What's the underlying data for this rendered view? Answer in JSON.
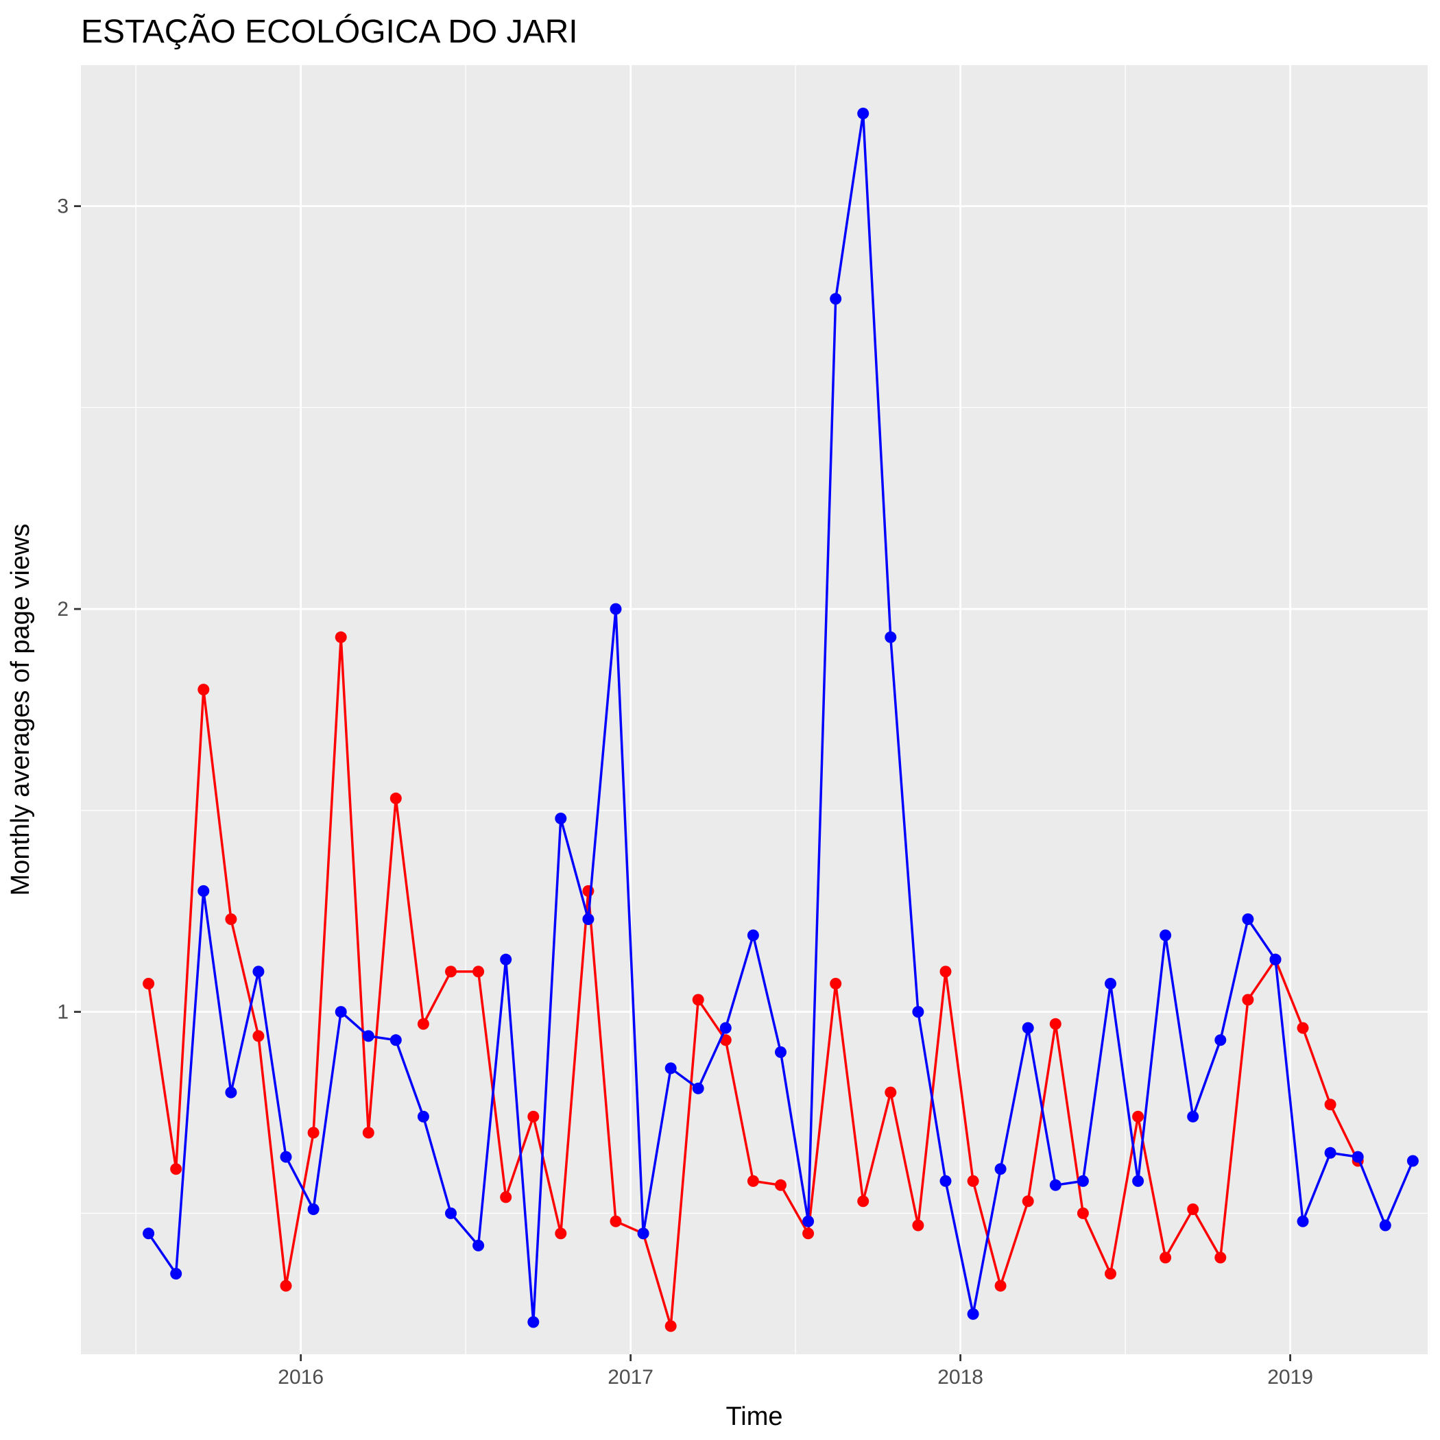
{
  "chart_data": {
    "type": "line",
    "title": "ESTAÇÃO ECOLÓGICA DO JARI",
    "xlabel": "Time",
    "ylabel": "Monthly averages of page views",
    "x_ticks": [
      "2016",
      "2017",
      "2018",
      "2019"
    ],
    "y_ticks": [
      "1",
      "2",
      "3"
    ],
    "y_tick_values": [
      1,
      2,
      3
    ],
    "xlim": [
      "2015-05-01",
      "2019-06-01"
    ],
    "ylim": [
      0.15,
      3.35
    ],
    "grid": true,
    "legend": "none",
    "x": [
      "2015-07",
      "2015-08",
      "2015-09",
      "2015-10",
      "2015-11",
      "2015-12",
      "2016-01",
      "2016-02",
      "2016-03",
      "2016-04",
      "2016-05",
      "2016-06",
      "2016-07",
      "2016-08",
      "2016-09",
      "2016-10",
      "2016-11",
      "2016-12",
      "2017-01",
      "2017-02",
      "2017-03",
      "2017-04",
      "2017-05",
      "2017-06",
      "2017-07",
      "2017-08",
      "2017-09",
      "2017-10",
      "2017-11",
      "2017-12",
      "2018-01",
      "2018-02",
      "2018-03",
      "2018-04",
      "2018-05",
      "2018-06",
      "2018-07",
      "2018-08",
      "2018-09",
      "2018-10",
      "2018-11",
      "2018-12",
      "2019-01",
      "2019-02",
      "2019-03",
      "2019-04",
      "2019-05"
    ],
    "series": [
      {
        "color": "#ff0000",
        "values": [
          1.07,
          0.61,
          1.8,
          1.23,
          0.94,
          0.32,
          0.7,
          1.93,
          0.7,
          1.53,
          0.97,
          1.1,
          1.1,
          0.54,
          0.74,
          0.45,
          1.3,
          0.48,
          0.45,
          0.22,
          1.03,
          0.93,
          0.58,
          0.57,
          0.45,
          1.07,
          0.53,
          0.8,
          0.47,
          1.1,
          0.58,
          0.32,
          0.53,
          0.97,
          0.5,
          0.35,
          0.74,
          0.39,
          0.51,
          0.39,
          1.03,
          1.13,
          0.96,
          0.77,
          0.63,
          null,
          null
        ]
      },
      {
        "color": "#0000ff",
        "values": [
          0.45,
          0.35,
          1.3,
          0.8,
          1.1,
          0.64,
          0.51,
          1.0,
          0.94,
          0.93,
          0.74,
          0.5,
          0.42,
          1.13,
          0.23,
          1.48,
          1.23,
          2.0,
          0.45,
          0.86,
          0.81,
          0.96,
          1.19,
          0.9,
          0.48,
          2.77,
          3.23,
          1.93,
          1.0,
          0.58,
          0.25,
          0.61,
          0.96,
          0.57,
          0.58,
          1.07,
          0.58,
          1.19,
          0.74,
          0.93,
          1.23,
          1.13,
          0.48,
          0.65,
          0.64,
          0.47,
          0.63
        ]
      }
    ]
  }
}
